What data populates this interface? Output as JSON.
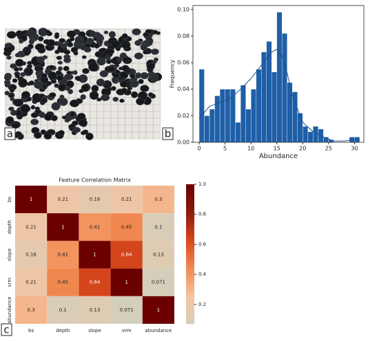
{
  "photo": {
    "label": "a"
  },
  "chart_data": [
    {
      "type": "histogram",
      "label": "b",
      "xlabel": "Abundance",
      "ylabel": "Frequency",
      "color": "#1f5fa8",
      "bins": [
        0,
        1,
        2,
        3,
        4,
        5,
        6,
        7,
        8,
        9,
        10,
        11,
        12,
        13,
        14,
        15,
        16,
        17,
        18,
        19,
        20,
        21,
        22,
        23,
        24,
        25,
        26,
        27,
        28,
        29,
        30,
        31
      ],
      "values": [
        0.055,
        0.02,
        0.025,
        0.035,
        0.04,
        0.04,
        0.04,
        0.015,
        0.043,
        0.025,
        0.04,
        0.055,
        0.068,
        0.076,
        0.053,
        0.098,
        0.082,
        0.045,
        0.038,
        0.022,
        0.012,
        0.008,
        0.012,
        0.01,
        0.004,
        0.002,
        0,
        0,
        0,
        0.004,
        0.004
      ],
      "kde": {
        "x": [
          0,
          2,
          4,
          6,
          8,
          10,
          12,
          14,
          15,
          16,
          17,
          18,
          20,
          22,
          24,
          26,
          28,
          30,
          31
        ],
        "y": [
          0.018,
          0.027,
          0.03,
          0.033,
          0.04,
          0.048,
          0.058,
          0.068,
          0.07,
          0.065,
          0.052,
          0.035,
          0.015,
          0.008,
          0.004,
          0.001,
          0.001,
          0.002,
          0.002
        ]
      },
      "xlim": [
        -1.2,
        31.8
      ],
      "ylim": [
        0,
        0.103
      ],
      "xticks": [
        0,
        5,
        10,
        15,
        20,
        25,
        30
      ],
      "yticks": [
        {
          "value": 0,
          "label": "0.00"
        },
        {
          "value": 0.02,
          "label": "0.02"
        },
        {
          "value": 0.04,
          "label": "0.04"
        },
        {
          "value": 0.06,
          "label": "0.06"
        },
        {
          "value": 0.08,
          "label": "0.08"
        },
        {
          "value": 0.1,
          "label": "0.10"
        }
      ]
    },
    {
      "type": "heatmap",
      "label": "c",
      "title": "Feature Correlation Matrix",
      "categories": [
        "bs",
        "depth",
        "slope",
        "vrm",
        "abundance"
      ],
      "values": [
        [
          1,
          0.21,
          0.16,
          0.21,
          0.3
        ],
        [
          0.21,
          1,
          0.41,
          0.45,
          0.1
        ],
        [
          0.16,
          0.41,
          1,
          0.64,
          0.13
        ],
        [
          0.21,
          0.45,
          0.64,
          1,
          0.071
        ],
        [
          0.3,
          0.1,
          0.13,
          0.071,
          1
        ]
      ],
      "colormap": [
        "#d4cfbb",
        "#f7c3a0",
        "#f08a50",
        "#d9481c",
        "#8e1a0e",
        "#6b0000"
      ],
      "clim": [
        0.071,
        1
      ],
      "cticks": [
        0.2,
        0.4,
        0.6,
        0.8,
        {
          "value": 1,
          "label": "1.0"
        }
      ]
    }
  ]
}
